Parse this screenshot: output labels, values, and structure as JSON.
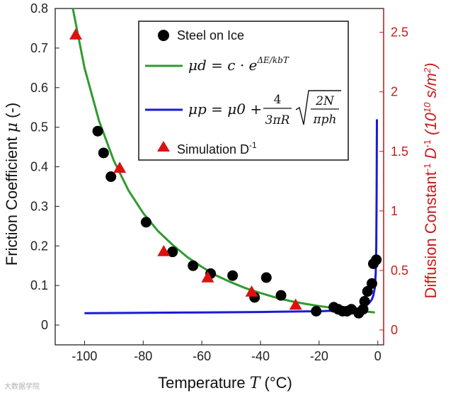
{
  "chart_data": {
    "type": "scatter",
    "xlabel": "Temperature",
    "xlabel_symbol": "T",
    "xlabel_unit": "(°C)",
    "ylabel": "Friction Coefficient",
    "ylabel_symbol": "μ",
    "ylabel_unit": "(-)",
    "y2label": "Diffusion Constant",
    "y2label_sup": "-1",
    "y2label_symbol": "D",
    "y2label_symbol_sup": "-1",
    "y2label_unit_open": "(10",
    "y2label_unit_exp": "10",
    "y2label_unit_mid": " s/m",
    "y2label_unit_exp2": "2",
    "y2label_unit_close": ")",
    "xlim": [
      -110,
      2
    ],
    "ylim": [
      -0.05,
      0.8
    ],
    "y2lim": [
      -0.125,
      2.7
    ],
    "x_ticks": [
      -100,
      -80,
      -60,
      -40,
      -20,
      0
    ],
    "x_tick_labels": [
      "-100",
      "-80",
      "-60",
      "-40",
      "-20",
      "0"
    ],
    "y_ticks": [
      0,
      0.1,
      0.2,
      0.3,
      0.4,
      0.5,
      0.6,
      0.7,
      0.8
    ],
    "y_tick_labels": [
      "0",
      "0.1",
      "0.2",
      "0.3",
      "0.4",
      "0.5",
      "0.6",
      "0.7",
      "0.8"
    ],
    "y2_ticks": [
      0,
      0.5,
      1,
      1.5,
      2,
      2.5
    ],
    "y2_tick_labels": [
      "0",
      "0.5",
      "1",
      "1.5",
      "2",
      "2.5"
    ],
    "legend_position": "top-right",
    "series": [
      {
        "name": "Steel on Ice",
        "kind": "scatter",
        "marker": "circle",
        "color": "#000000",
        "x": [
          -95.5,
          -93.5,
          -91,
          -79,
          -70,
          -63,
          -57,
          -49.5,
          -42,
          -38,
          -33,
          -21,
          -15,
          -13.5,
          -12,
          -10.5,
          -9,
          -6.5,
          -5,
          -4.5,
          -3.5,
          -2,
          -1.5,
          -0.5
        ],
        "y": [
          0.49,
          0.435,
          0.375,
          0.26,
          0.185,
          0.15,
          0.13,
          0.125,
          0.07,
          0.12,
          0.075,
          0.035,
          0.045,
          0.04,
          0.035,
          0.035,
          0.04,
          0.03,
          0.04,
          0.06,
          0.085,
          0.105,
          0.155,
          0.165
        ]
      },
      {
        "name": "Simulation D",
        "name_sup": "-1",
        "kind": "scatter",
        "marker": "triangle",
        "axis": "right",
        "color": "#dd1111",
        "x": [
          -103,
          -88,
          -73,
          -58,
          -43,
          -28
        ],
        "y": [
          2.48,
          1.36,
          0.66,
          0.44,
          0.32,
          0.21
        ]
      },
      {
        "name": "mu_d",
        "kind": "line",
        "color": "#2e9b2e",
        "equation_lhs": "μd = c · e",
        "equation_exp": "ΔE/kbT",
        "x": [
          -104,
          -100,
          -95,
          -90,
          -85,
          -80,
          -75,
          -70,
          -65,
          -60,
          -55,
          -50,
          -45,
          -40,
          -35,
          -30,
          -25,
          -20,
          -15,
          -10,
          -5,
          -1
        ],
        "y": [
          0.8,
          0.65,
          0.515,
          0.415,
          0.34,
          0.283,
          0.238,
          0.203,
          0.172,
          0.147,
          0.125,
          0.108,
          0.093,
          0.081,
          0.07,
          0.061,
          0.054,
          0.048,
          0.043,
          0.038,
          0.035,
          0.032
        ]
      },
      {
        "name": "mu_p",
        "kind": "line",
        "color": "#1a1ad6",
        "equation_lhs": "μp = μ0 +",
        "equation_frac_num": "4",
        "equation_frac_den": "3πR",
        "equation_sqrt_num": "2N",
        "equation_sqrt_den": "πph",
        "x": [
          -100,
          -80,
          -60,
          -40,
          -20,
          -12,
          -8,
          -5,
          -3,
          -2,
          -1.5,
          -1,
          -0.7,
          -0.5,
          -0.4,
          -0.3
        ],
        "y": [
          0.03,
          0.031,
          0.032,
          0.033,
          0.035,
          0.037,
          0.04,
          0.046,
          0.055,
          0.065,
          0.075,
          0.095,
          0.13,
          0.2,
          0.33,
          0.52
        ]
      }
    ]
  },
  "watermark": "大数据学院"
}
